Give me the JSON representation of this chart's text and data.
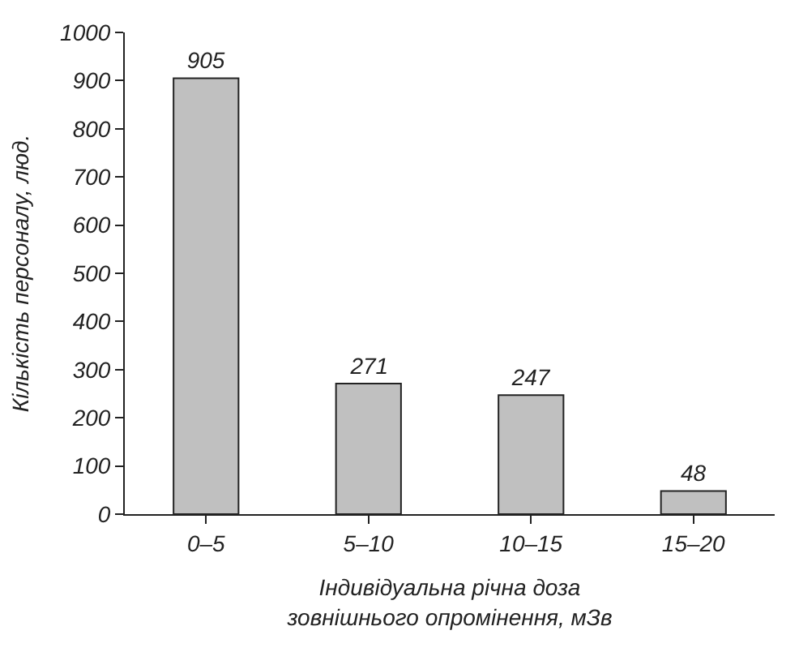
{
  "chart_data": {
    "type": "bar",
    "categories": [
      "0–5",
      "5–10",
      "10–15",
      "15–20"
    ],
    "values": [
      905,
      271,
      247,
      48
    ],
    "color": "#c0c0c0",
    "xlabel": "Індивідуальна річна доза\nзовнішнього опромінення, мЗв",
    "ylabel": "Кількість персоналу, люд.",
    "ylim": [
      0,
      1000
    ],
    "yticks": [
      0,
      100,
      200,
      300,
      400,
      500,
      600,
      700,
      800,
      900,
      1000
    ],
    "data_labels": true
  }
}
